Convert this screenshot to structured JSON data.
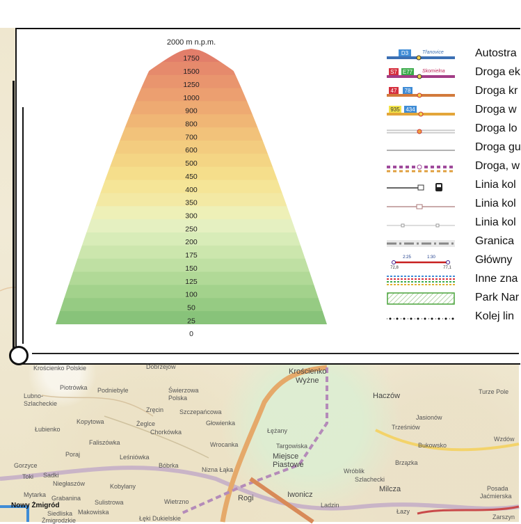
{
  "elevation_scale": {
    "top_label": "2000 m n.p.m.",
    "levels": [
      "1750",
      "1500",
      "1250",
      "1000",
      "900",
      "800",
      "700",
      "600",
      "500",
      "450",
      "400",
      "350",
      "300",
      "250",
      "200",
      "175",
      "150",
      "125",
      "100",
      "50",
      "25",
      "0"
    ],
    "colors": [
      "#e27e6a",
      "#e68a6c",
      "#e9956e",
      "#ec9f70",
      "#eeaa72",
      "#f0b675",
      "#f2c27a",
      "#f3cc7f",
      "#f4d584",
      "#f5de8b",
      "#f5e597",
      "#f3e9a4",
      "#eef0b7",
      "#e5f0c1",
      "#d8ecb8",
      "#cce6ad",
      "#bfe0a3",
      "#b1d997",
      "#a3d28c",
      "#96cb83",
      "#88c37a"
    ]
  },
  "legend": {
    "items": [
      {
        "label": "Autostra",
        "badges": [
          "D3"
        ],
        "badge_colors": [
          "#3f8cd6"
        ],
        "name_label": "Třanovice"
      },
      {
        "label": "Droga ek",
        "badges": [
          "S7",
          "E77"
        ],
        "badge_colors": [
          "#d5303e",
          "#3bab4b"
        ],
        "name_label": "Skomielna"
      },
      {
        "label": "Droga kr",
        "badges": [
          "47",
          "78"
        ],
        "badge_colors": [
          "#d5303e",
          "#3f8cd6"
        ]
      },
      {
        "label": "Droga w",
        "badges": [
          "935",
          "434"
        ],
        "badge_colors": [
          "#f2e34a",
          "#3f8cd6"
        ]
      },
      {
        "label": "Droga lo"
      },
      {
        "label": "Droga gu"
      },
      {
        "label": "Droga, w"
      },
      {
        "label": "Linia kol"
      },
      {
        "label": "Linia kol"
      },
      {
        "label": "Linia kol"
      },
      {
        "label": "Granica"
      },
      {
        "label": "Główny",
        "times": [
          "2:25",
          "1:30"
        ],
        "distances": [
          "72,8",
          "77,1"
        ]
      },
      {
        "label": "Inne zna"
      },
      {
        "label": "Park Nar"
      },
      {
        "label": "Kolej lin"
      }
    ]
  },
  "map_labels": {
    "a": "Krościenko",
    "b": "Wyżne",
    "c": "Haczów",
    "d": "Turze Pole",
    "e": "Lubno-",
    "f": "Szlacheckie",
    "g": "Piotrówka",
    "h": "Podniebyle",
    "i": "Świerzowa",
    "j": "Polska",
    "k": "Szczepańcowa",
    "l": "Zręcin",
    "m": "Łubienko",
    "n": "Kopytowa",
    "o": "Żeglce",
    "p": "Chorkówka",
    "q": "Głowienka",
    "r": "Łężany",
    "s": "Jasionów",
    "t": "Trześniów",
    "u": "Wzdów",
    "v": "Faliszówka",
    "w": "Poraj",
    "x": "Leśniówka",
    "y": "Bóbrka",
    "z": "Wrocanka",
    "aa": "Targowiska",
    "ab": "Miejsce",
    "ac": "Piastowe",
    "ad": "Bukowsko",
    "ae": "Gorzyce",
    "af": "Toki",
    "ag": "Sadki",
    "ah": "Niegłaszów",
    "ai": "Kobylany",
    "aj": "Nizna Łąka",
    "ak": "Wróblik",
    "al": "Szlachecki",
    "am": "Brzązka",
    "an": "Grabanina",
    "ao": "Iwonicz",
    "ap": "Ladzin",
    "aq": "Milcza",
    "ar": "Posada",
    "as": "Jaćmierska",
    "at": "Nowy Żmigród",
    "au": "Siedliska",
    "av": "Żmigrodzkie",
    "aw": "Łęki Dukielskie",
    "ax": "Wietrzno",
    "ay": "Rogi",
    "az": "Łazy",
    "ba": "Zarszyn",
    "bb": "Mytarka",
    "bc": "Makowiska",
    "bd": "Sulistrowa",
    "be": "Krościenko Polskie",
    "bf": "Dobrzejow"
  }
}
